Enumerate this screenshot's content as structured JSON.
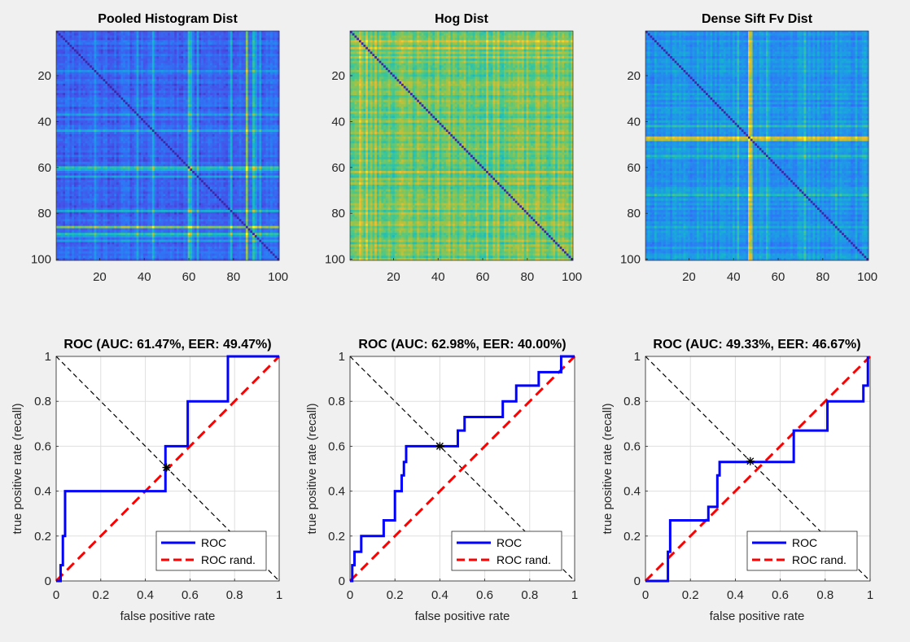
{
  "figure": {
    "background": "#f0f0f0"
  },
  "heatmaps": [
    {
      "title": "Pooled Histogram Dist",
      "rows": 100,
      "cols": 100,
      "xticks": [
        "20",
        "40",
        "60",
        "80",
        "100"
      ],
      "yticks": [
        "20",
        "40",
        "60",
        "80",
        "100"
      ],
      "base_level": 0.2,
      "row_spread": 0.12,
      "bright_bands": [
        [
          18,
          0.15
        ],
        [
          37,
          0.25
        ],
        [
          44,
          0.2
        ],
        [
          60,
          0.35
        ],
        [
          61,
          0.3
        ],
        [
          64,
          0.25
        ],
        [
          79,
          0.2
        ],
        [
          86,
          0.45
        ],
        [
          89,
          0.3
        ],
        [
          90,
          0.25
        ],
        [
          92,
          0.2
        ]
      ],
      "seed": 11
    },
    {
      "title": "Hog Dist",
      "rows": 100,
      "cols": 100,
      "xticks": [
        "20",
        "40",
        "60",
        "80",
        "100"
      ],
      "yticks": [
        "20",
        "40",
        "60",
        "80",
        "100"
      ],
      "base_level": 0.68,
      "row_spread": 0.16,
      "bright_bands": [
        [
          5,
          0.12
        ],
        [
          8,
          0.12
        ],
        [
          12,
          0.1
        ],
        [
          28,
          0.08
        ],
        [
          47,
          0.08
        ],
        [
          62,
          0.08
        ]
      ],
      "seed": 23
    },
    {
      "title": "Dense Sift Fv Dist",
      "rows": 100,
      "cols": 100,
      "xticks": [
        "20",
        "40",
        "60",
        "80",
        "100"
      ],
      "yticks": [
        "20",
        "40",
        "60",
        "80",
        "100"
      ],
      "base_level": 0.36,
      "row_spread": 0.14,
      "bright_bands": [
        [
          5,
          0.12
        ],
        [
          14,
          0.1
        ],
        [
          42,
          0.25
        ],
        [
          47,
          0.45
        ],
        [
          48,
          0.35
        ],
        [
          55,
          0.18
        ],
        [
          72,
          0.12
        ],
        [
          86,
          0.12
        ],
        [
          95,
          0.1
        ]
      ],
      "seed": 37
    }
  ],
  "chart_data": [
    {
      "type": "line",
      "title": "ROC (AUC: 61.47%, EER: 49.47%)",
      "xlabel": "false positive rate",
      "ylabel": "true positive rate (recall)",
      "xlim": [
        0,
        1
      ],
      "ylim": [
        0,
        1
      ],
      "xticks": [
        "0",
        "0.2",
        "0.4",
        "0.6",
        "0.8",
        "1"
      ],
      "yticks": [
        "0",
        "0.2",
        "0.4",
        "0.6",
        "0.8",
        "1"
      ],
      "grid": true,
      "legend_position": "bottom-right",
      "series": [
        {
          "name": "ROC",
          "color": "#0000ff",
          "x": [
            0,
            0.02,
            0.02,
            0.03,
            0.03,
            0.04,
            0.04,
            0.49,
            0.49,
            0.59,
            0.59,
            0.77,
            0.77,
            1
          ],
          "y": [
            0,
            0,
            0.07,
            0.07,
            0.2,
            0.2,
            0.4,
            0.4,
            0.6,
            0.6,
            0.8,
            0.8,
            1,
            1
          ]
        },
        {
          "name": "ROC rand.",
          "color": "#ff0000",
          "x": [
            0,
            1
          ],
          "y": [
            0,
            1
          ]
        }
      ],
      "eer_diagonal": {
        "x": [
          0,
          1
        ],
        "y": [
          1,
          0
        ],
        "color": "#000000"
      },
      "eer_point": {
        "x": 0.4947,
        "y": 0.5053
      }
    },
    {
      "type": "line",
      "title": "ROC (AUC: 62.98%, EER: 40.00%)",
      "xlabel": "false positive rate",
      "ylabel": "true positive rate (recall)",
      "xlim": [
        0,
        1
      ],
      "ylim": [
        0,
        1
      ],
      "xticks": [
        "0",
        "0.2",
        "0.4",
        "0.6",
        "0.8",
        "1"
      ],
      "yticks": [
        "0",
        "0.2",
        "0.4",
        "0.6",
        "0.8",
        "1"
      ],
      "grid": true,
      "legend_position": "bottom-right",
      "series": [
        {
          "name": "ROC",
          "color": "#0000ff",
          "x": [
            0,
            0.01,
            0.01,
            0.02,
            0.02,
            0.05,
            0.05,
            0.15,
            0.15,
            0.2,
            0.2,
            0.23,
            0.23,
            0.24,
            0.24,
            0.25,
            0.25,
            0.48,
            0.48,
            0.51,
            0.51,
            0.68,
            0.68,
            0.74,
            0.74,
            0.84,
            0.84,
            0.94,
            0.94,
            1
          ],
          "y": [
            0,
            0,
            0.07,
            0.07,
            0.13,
            0.13,
            0.2,
            0.2,
            0.27,
            0.27,
            0.4,
            0.4,
            0.47,
            0.47,
            0.53,
            0.53,
            0.6,
            0.6,
            0.67,
            0.67,
            0.73,
            0.73,
            0.8,
            0.8,
            0.87,
            0.87,
            0.93,
            0.93,
            1,
            1
          ]
        },
        {
          "name": "ROC rand.",
          "color": "#ff0000",
          "x": [
            0,
            1
          ],
          "y": [
            0,
            1
          ]
        }
      ],
      "eer_diagonal": {
        "x": [
          0,
          1
        ],
        "y": [
          1,
          0
        ],
        "color": "#000000"
      },
      "eer_point": {
        "x": 0.4,
        "y": 0.6
      }
    },
    {
      "type": "line",
      "title": "ROC (AUC: 49.33%, EER: 46.67%)",
      "xlabel": "false positive rate",
      "ylabel": "true positive rate (recall)",
      "xlim": [
        0,
        1
      ],
      "ylim": [
        0,
        1
      ],
      "xticks": [
        "0",
        "0.2",
        "0.4",
        "0.6",
        "0.8",
        "1"
      ],
      "yticks": [
        "0",
        "0.2",
        "0.4",
        "0.6",
        "0.8",
        "1"
      ],
      "grid": true,
      "legend_position": "bottom-right",
      "series": [
        {
          "name": "ROC",
          "color": "#0000ff",
          "x": [
            0,
            0.1,
            0.1,
            0.11,
            0.11,
            0.28,
            0.28,
            0.32,
            0.32,
            0.33,
            0.33,
            0.34,
            0.34,
            0.66,
            0.66,
            0.81,
            0.81,
            0.97,
            0.97,
            0.99,
            0.99
          ],
          "y": [
            0,
            0,
            0.13,
            0.13,
            0.27,
            0.27,
            0.33,
            0.33,
            0.47,
            0.47,
            0.53,
            0.53,
            0.53,
            0.53,
            0.67,
            0.67,
            0.8,
            0.8,
            0.87,
            0.87,
            1
          ]
        },
        {
          "name": "ROC rand.",
          "color": "#ff0000",
          "x": [
            0,
            1
          ],
          "y": [
            0,
            1
          ]
        }
      ],
      "eer_diagonal": {
        "x": [
          0,
          1
        ],
        "y": [
          1,
          0
        ],
        "color": "#000000"
      },
      "eer_point": {
        "x": 0.4667,
        "y": 0.5333
      }
    }
  ]
}
